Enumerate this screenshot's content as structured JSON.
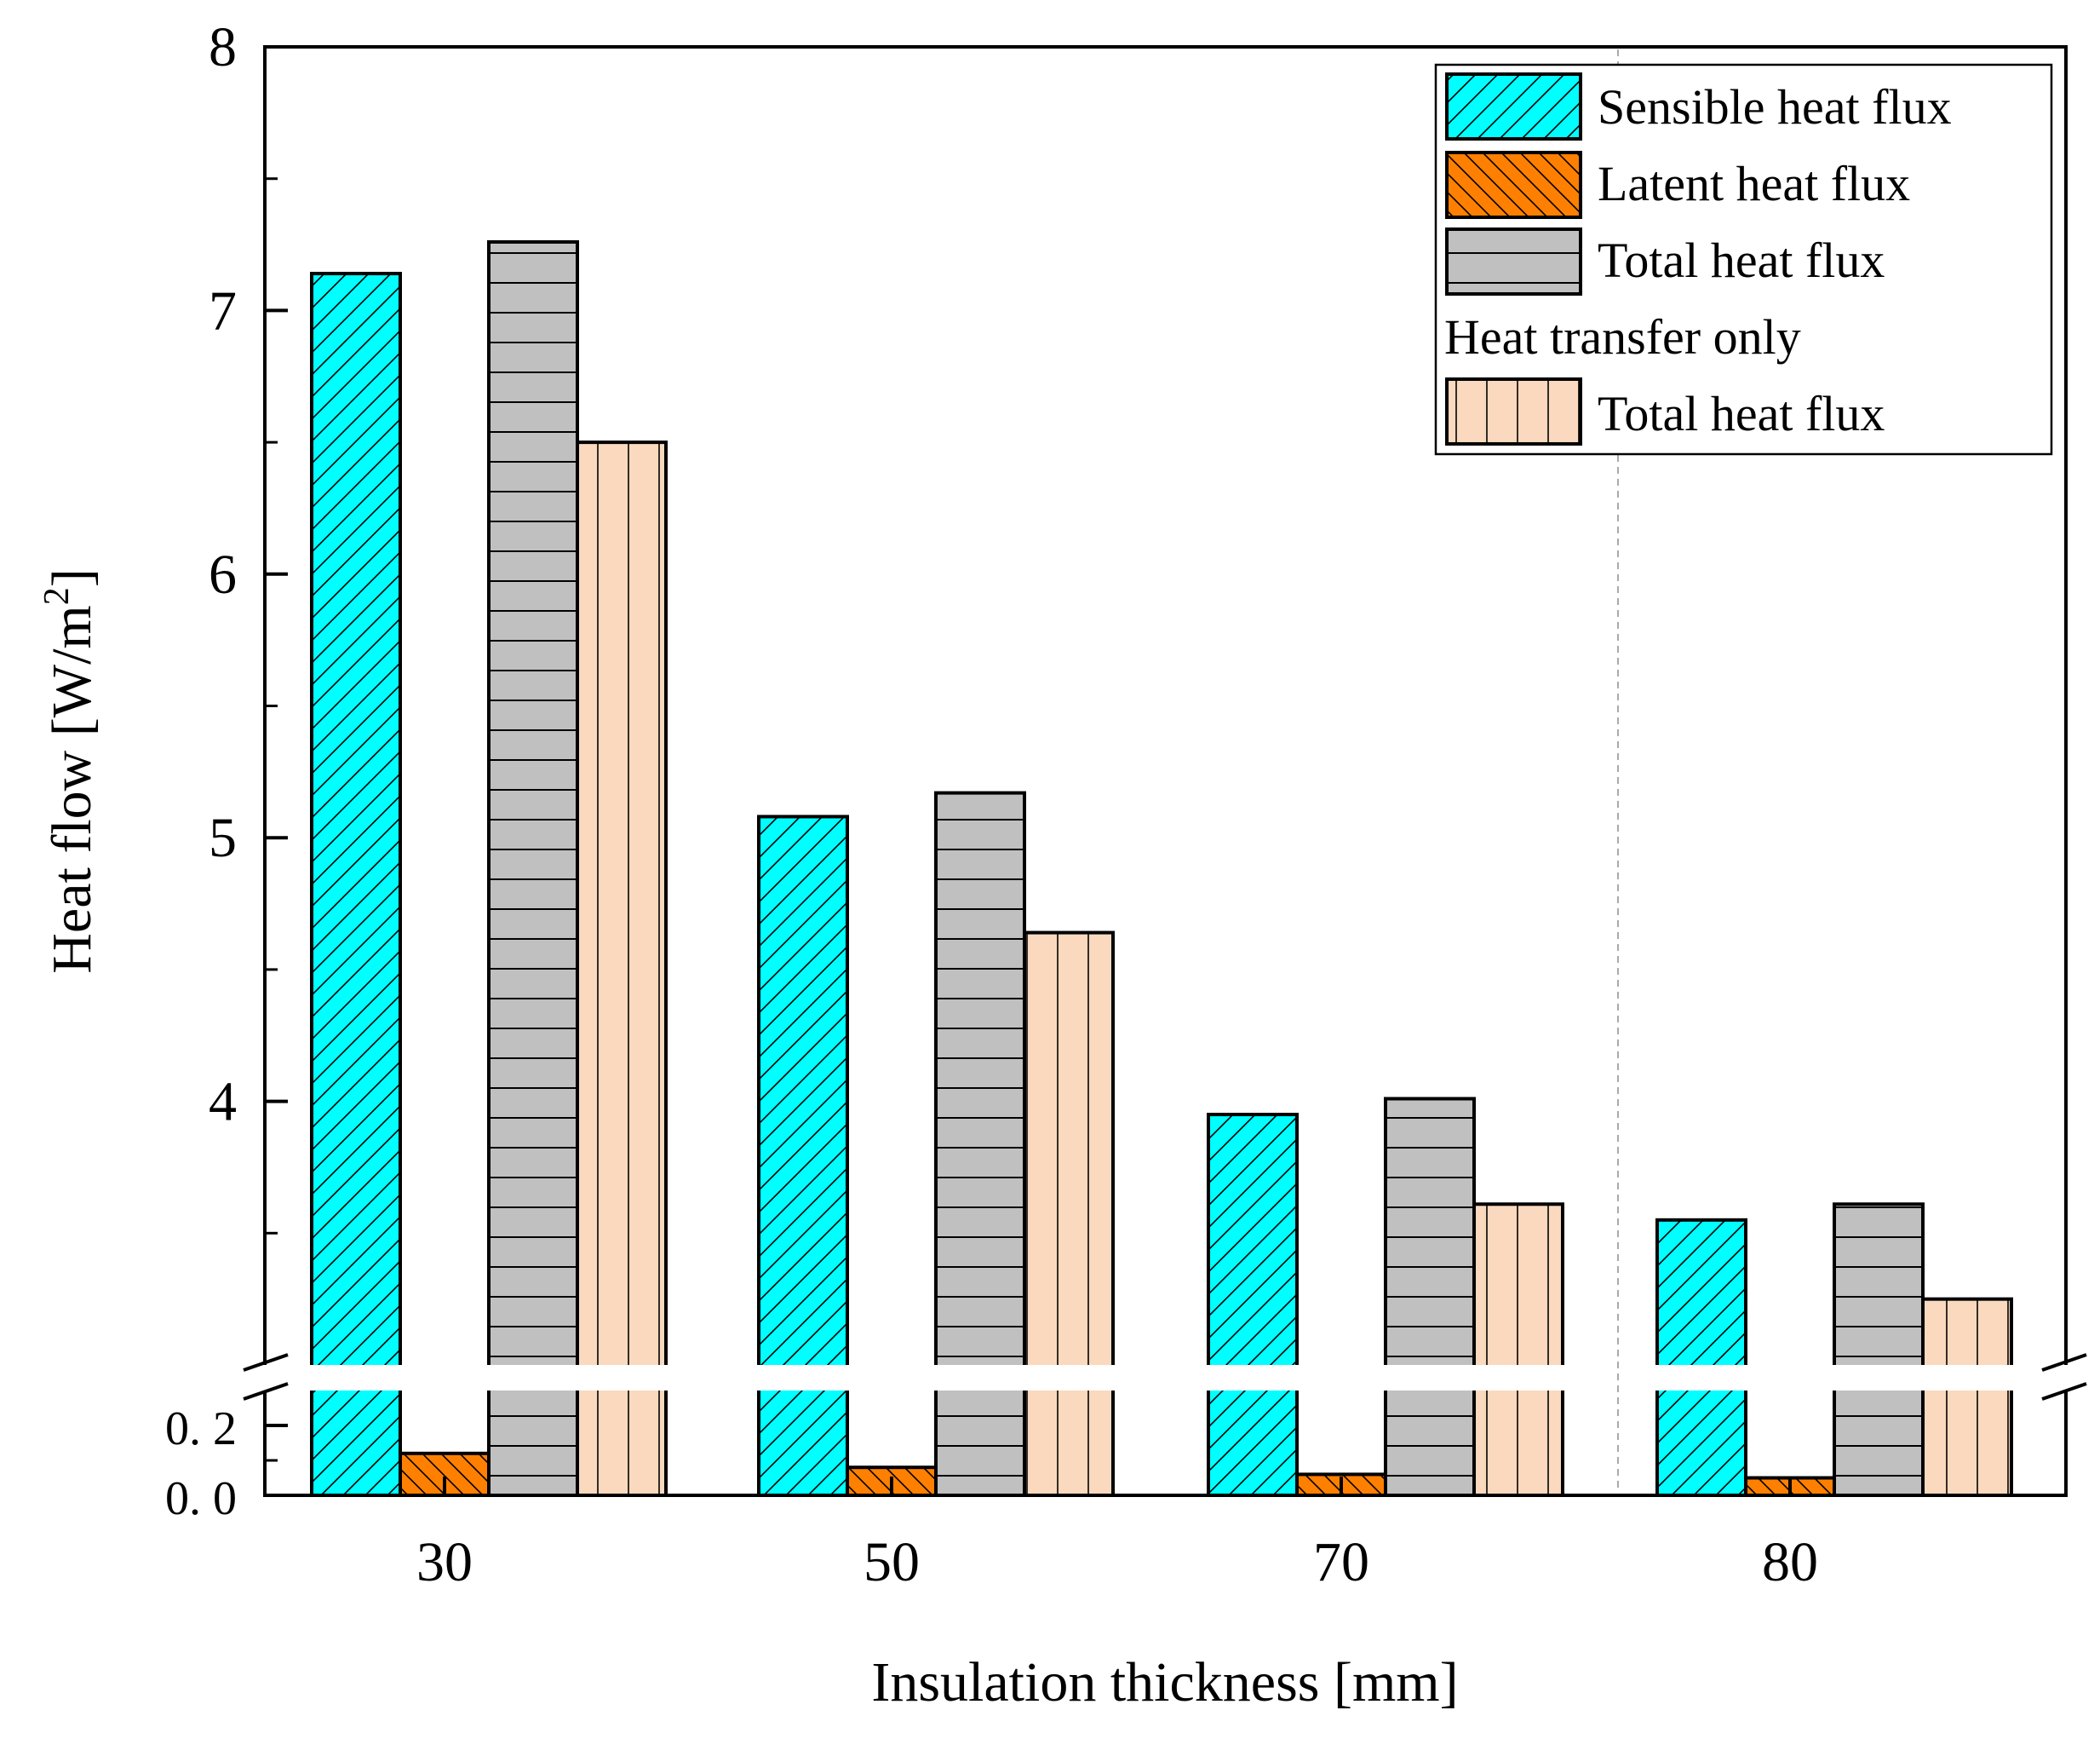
{
  "chart_data": {
    "type": "bar",
    "categories": [
      "30",
      "50",
      "70",
      "80"
    ],
    "series": [
      {
        "name": "Sensible heat flux",
        "values": [
          7.14,
          5.08,
          3.95,
          3.55
        ],
        "color": "#00FFFF",
        "pattern": "hatch-up"
      },
      {
        "name": "Latent heat flux",
        "values": [
          0.12,
          0.08,
          0.06,
          0.05
        ],
        "color": "#FF8000",
        "pattern": "hatch-down"
      },
      {
        "name": "Total heat flux",
        "values": [
          7.26,
          5.17,
          4.01,
          3.61
        ],
        "color": "#C0C0C0",
        "pattern": "horizontal"
      },
      {
        "name": "Total heat flux",
        "group": "Heat transfer only",
        "values": [
          6.5,
          4.64,
          3.61,
          3.25
        ],
        "color": "#FAD9BE",
        "pattern": "vertical"
      }
    ],
    "legend_group_label": "Heat transfer only",
    "xlabel": "Insulation thickness [mm]",
    "ylabel": "Heat flow [W/m²]",
    "ylabel_main": "Heat flow [W/m",
    "ylabel_sup": "2",
    "ylabel_close": "]",
    "y_break": {
      "lower": [
        0.0,
        0.3
      ],
      "upper": [
        3.0,
        8.0
      ]
    },
    "y_ticks_upper": [
      "4",
      "5",
      "6",
      "7",
      "8"
    ],
    "y_ticks_lower": [
      "0. 0",
      "0. 2"
    ],
    "legend_position": "top-right"
  }
}
